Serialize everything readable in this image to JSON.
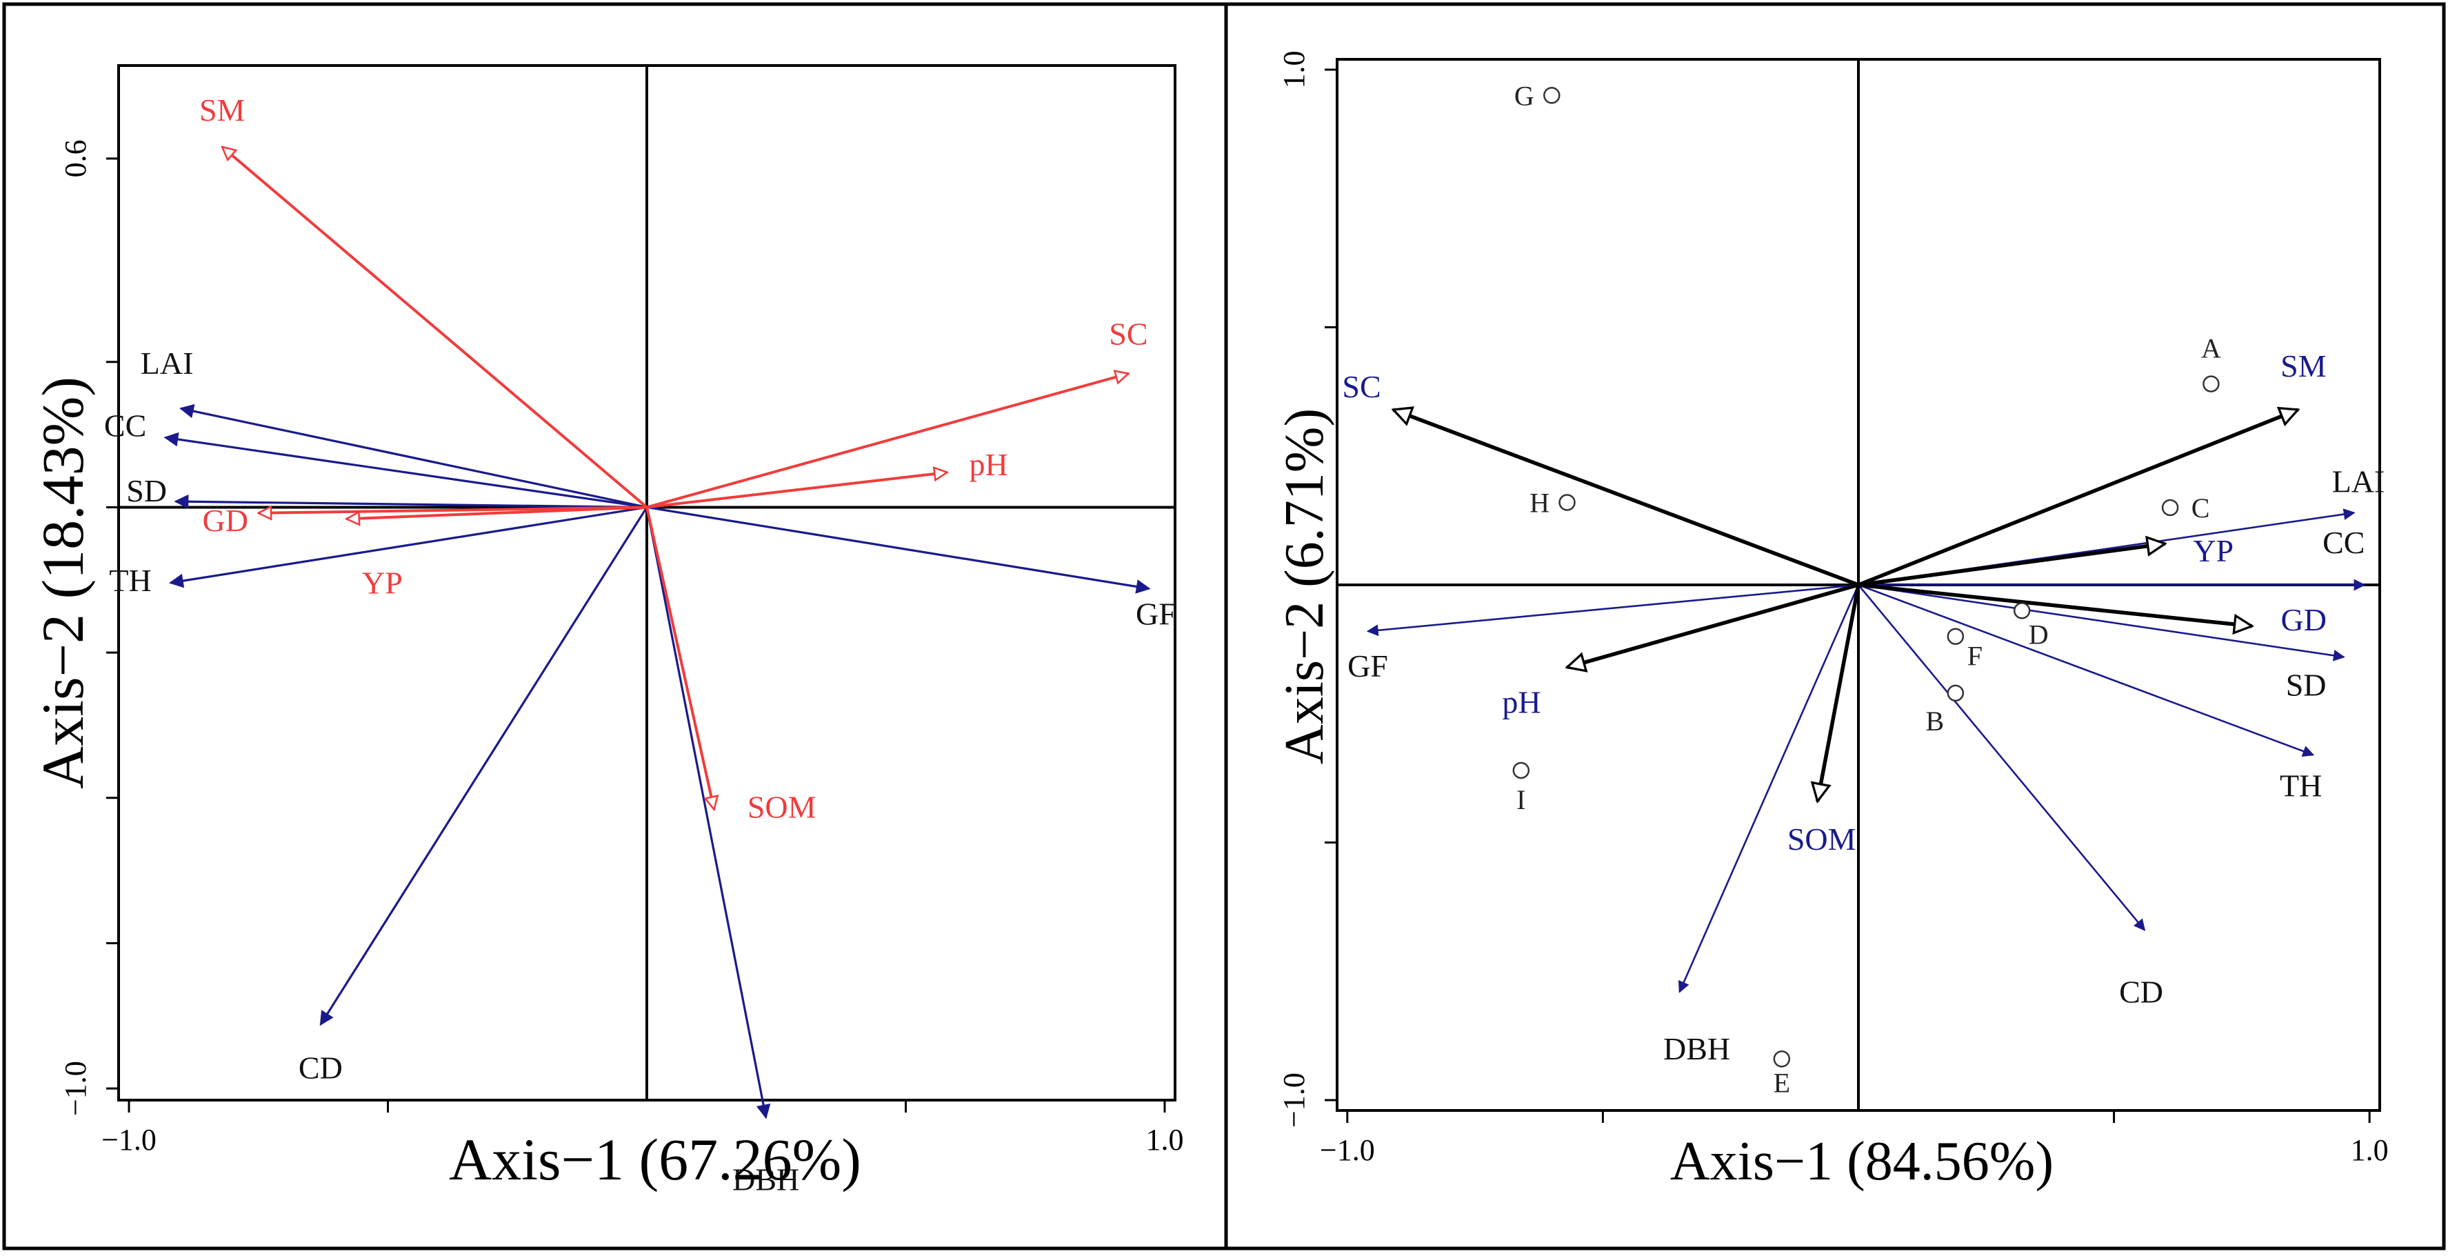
{
  "colors": {
    "response_arrow": "#1a1a8c",
    "left_env_arrow": "#f03c3c",
    "right_env_arrow": "#000000",
    "right_env_label": "#1a1a8c",
    "label_dark": "#111111",
    "frame": "#000000"
  },
  "chart_data": [
    {
      "type": "biplot",
      "panel": "left",
      "xlabel": "Axis−1 (67.26%)",
      "ylabel": "Axis−2 (18.43%)",
      "xlim": [
        -1.02,
        1.02
      ],
      "ylim": [
        -1.02,
        0.76
      ],
      "x_tick_labels": [
        {
          "value": -1.0,
          "label": "−1.0"
        },
        {
          "value": 1.0,
          "label": "1.0"
        }
      ],
      "x_minor_ticks": [
        -0.5,
        0.5
      ],
      "y_tick_labels": [
        {
          "value": 0.6,
          "label": "0.6"
        },
        {
          "value": -1.0,
          "label": "−1.0"
        }
      ],
      "y_minor_ticks": [
        0.25,
        0.0,
        -0.25,
        -0.5,
        -0.75
      ],
      "response_vectors": [
        {
          "name": "LAI",
          "x": -0.9,
          "y": 0.17
        },
        {
          "name": "CC",
          "x": -0.93,
          "y": 0.12
        },
        {
          "name": "SD",
          "x": -0.91,
          "y": 0.01
        },
        {
          "name": "TH",
          "x": -0.92,
          "y": -0.13
        },
        {
          "name": "GF",
          "x": 0.97,
          "y": -0.14
        },
        {
          "name": "CD",
          "x": -0.63,
          "y": -0.89
        },
        {
          "name": "DBH",
          "x": 0.23,
          "y": -1.05
        }
      ],
      "environment_vectors": [
        {
          "name": "SM",
          "x": -0.82,
          "y": 0.62
        },
        {
          "name": "SC",
          "x": 0.93,
          "y": 0.23
        },
        {
          "name": "pH",
          "x": 0.58,
          "y": 0.06
        },
        {
          "name": "GD",
          "x": -0.75,
          "y": -0.01
        },
        {
          "name": "YP",
          "x": -0.58,
          "y": -0.02
        },
        {
          "name": "SOM",
          "x": 0.13,
          "y": -0.52
        }
      ]
    },
    {
      "type": "biplot",
      "panel": "right",
      "xlabel": "Axis−1 (84.56%)",
      "ylabel": "Axis−2 (6.71%)",
      "xlim": [
        -1.02,
        1.02
      ],
      "ylim": [
        -1.02,
        1.02
      ],
      "x_tick_labels": [
        {
          "value": -1.0,
          "label": "−1.0"
        },
        {
          "value": 1.0,
          "label": "1.0"
        }
      ],
      "x_minor_ticks": [
        -0.5,
        0.5
      ],
      "y_tick_labels": [
        {
          "value": 1.0,
          "label": "1.0"
        },
        {
          "value": -1.0,
          "label": "−1.0"
        }
      ],
      "y_minor_ticks": [
        0.5,
        -0.5
      ],
      "response_vectors": [
        {
          "name": "LAI",
          "x": 0.97,
          "y": 0.14
        },
        {
          "name": "CC",
          "x": 0.99,
          "y": 0.0
        },
        {
          "name": "SD",
          "x": 0.95,
          "y": -0.14
        },
        {
          "name": "TH",
          "x": 0.89,
          "y": -0.33
        },
        {
          "name": "CD",
          "x": 0.56,
          "y": -0.67
        },
        {
          "name": "DBH",
          "x": -0.35,
          "y": -0.79
        },
        {
          "name": "GF",
          "x": -0.96,
          "y": -0.09
        },
        {
          "name": "YP",
          "x": 0.6,
          "y": 0.08
        }
      ],
      "environment_vectors": [
        {
          "name": "SM",
          "x": 0.86,
          "y": 0.34
        },
        {
          "name": "YP",
          "x": 0.6,
          "y": 0.08
        },
        {
          "name": "GD",
          "x": 0.77,
          "y": -0.08
        },
        {
          "name": "SOM",
          "x": -0.08,
          "y": -0.42
        },
        {
          "name": "pH",
          "x": -0.57,
          "y": -0.16
        },
        {
          "name": "SC",
          "x": -0.91,
          "y": 0.34
        }
      ],
      "sites": [
        {
          "name": "A",
          "x": 0.69,
          "y": 0.39
        },
        {
          "name": "B",
          "x": 0.19,
          "y": -0.21
        },
        {
          "name": "C",
          "x": 0.61,
          "y": 0.15
        },
        {
          "name": "D",
          "x": 0.32,
          "y": -0.05
        },
        {
          "name": "E",
          "x": -0.15,
          "y": -0.92
        },
        {
          "name": "F",
          "x": 0.19,
          "y": -0.1
        },
        {
          "name": "G",
          "x": -0.6,
          "y": 0.95
        },
        {
          "name": "H",
          "x": -0.57,
          "y": 0.16
        },
        {
          "name": "I",
          "x": -0.66,
          "y": -0.36
        }
      ]
    }
  ]
}
